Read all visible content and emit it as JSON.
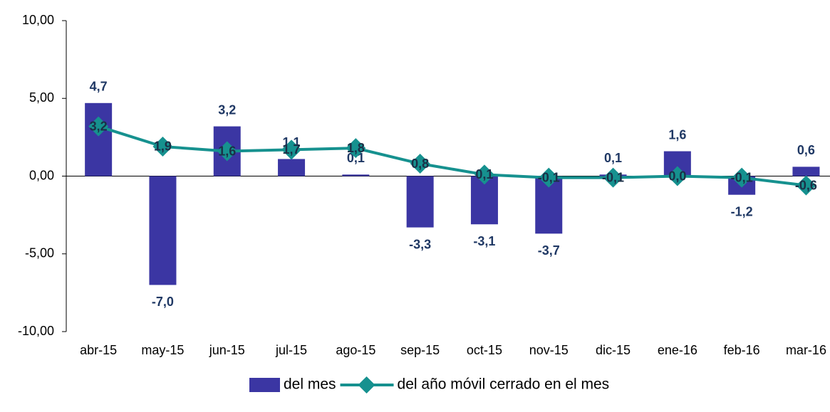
{
  "chart_data": {
    "type": "bar",
    "categories": [
      "abr-15",
      "may-15",
      "jun-15",
      "jul-15",
      "ago-15",
      "sep-15",
      "oct-15",
      "nov-15",
      "dic-15",
      "ene-16",
      "feb-16",
      "mar-16"
    ],
    "series": [
      {
        "name": "del mes",
        "type": "bar",
        "color": "#3b36a3",
        "values": [
          4.7,
          -7.0,
          3.2,
          1.1,
          0.1,
          -3.3,
          -3.1,
          -3.7,
          0.1,
          1.6,
          -1.2,
          0.6
        ],
        "value_labels": [
          "4,7",
          "-7,0",
          "3,2",
          "1,1",
          "0,1",
          "-3,3",
          "-3,1",
          "-3,7",
          "0,1",
          "1,6",
          "-1,2",
          "0,6"
        ]
      },
      {
        "name": "del año móvil cerrado en el mes",
        "type": "line",
        "color": "#16918f",
        "values": [
          3.2,
          1.9,
          1.6,
          1.7,
          1.8,
          0.8,
          0.1,
          -0.1,
          -0.1,
          0.0,
          -0.1,
          -0.6
        ],
        "value_labels": [
          "3,2",
          "1,9",
          "1,6",
          "1,7",
          "1,8",
          "0,8",
          "0,1",
          "-0,1",
          "-0,1",
          "0,0",
          "-0,1",
          "-0,6"
        ]
      }
    ],
    "ylim": [
      -10,
      10
    ],
    "yticks": [
      {
        "value": -10,
        "label": "-10,00"
      },
      {
        "value": -5,
        "label": "-5,00"
      },
      {
        "value": 0,
        "label": "0,00"
      },
      {
        "value": 5,
        "label": "5,00"
      },
      {
        "value": 10,
        "label": "10,00"
      }
    ],
    "legend": "bottom"
  }
}
